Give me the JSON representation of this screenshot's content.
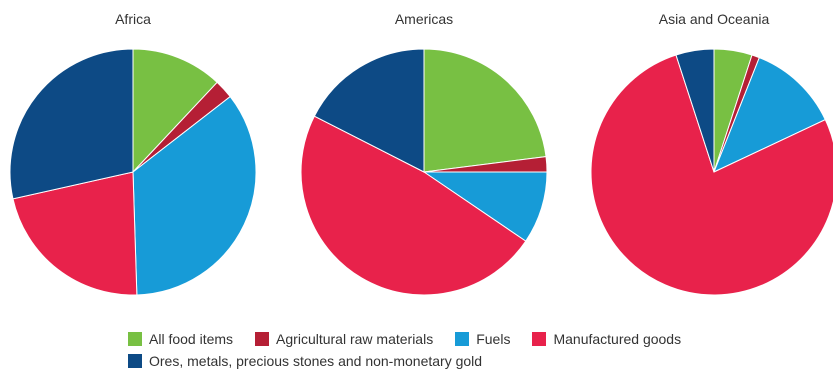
{
  "chart_data": {
    "type": "pie",
    "categories": [
      "All food items",
      "Agricultural raw materials",
      "Fuels",
      "Manufactured goods",
      "Ores, metals, precious stones and non-monetary gold"
    ],
    "colors": [
      "#78c043",
      "#b51f35",
      "#179bd7",
      "#e8224b",
      "#0d4a85"
    ],
    "pies": [
      {
        "title": "Africa",
        "values": [
          12,
          2.5,
          35,
          22,
          28.5
        ]
      },
      {
        "title": "Americas",
        "values": [
          23,
          2,
          9.5,
          48,
          17.5
        ]
      },
      {
        "title": "Asia and Oceania",
        "values": [
          5,
          1,
          12,
          77,
          5
        ]
      }
    ]
  },
  "legend": {
    "items": [
      {
        "label": "All food items",
        "color": "#78c043"
      },
      {
        "label": "Agricultural raw materials",
        "color": "#b51f35"
      },
      {
        "label": "Fuels",
        "color": "#179bd7"
      },
      {
        "label": "Manufactured goods",
        "color": "#e8224b"
      },
      {
        "label": "Ores, metals, precious stones and non-monetary gold",
        "color": "#0d4a85"
      }
    ]
  }
}
